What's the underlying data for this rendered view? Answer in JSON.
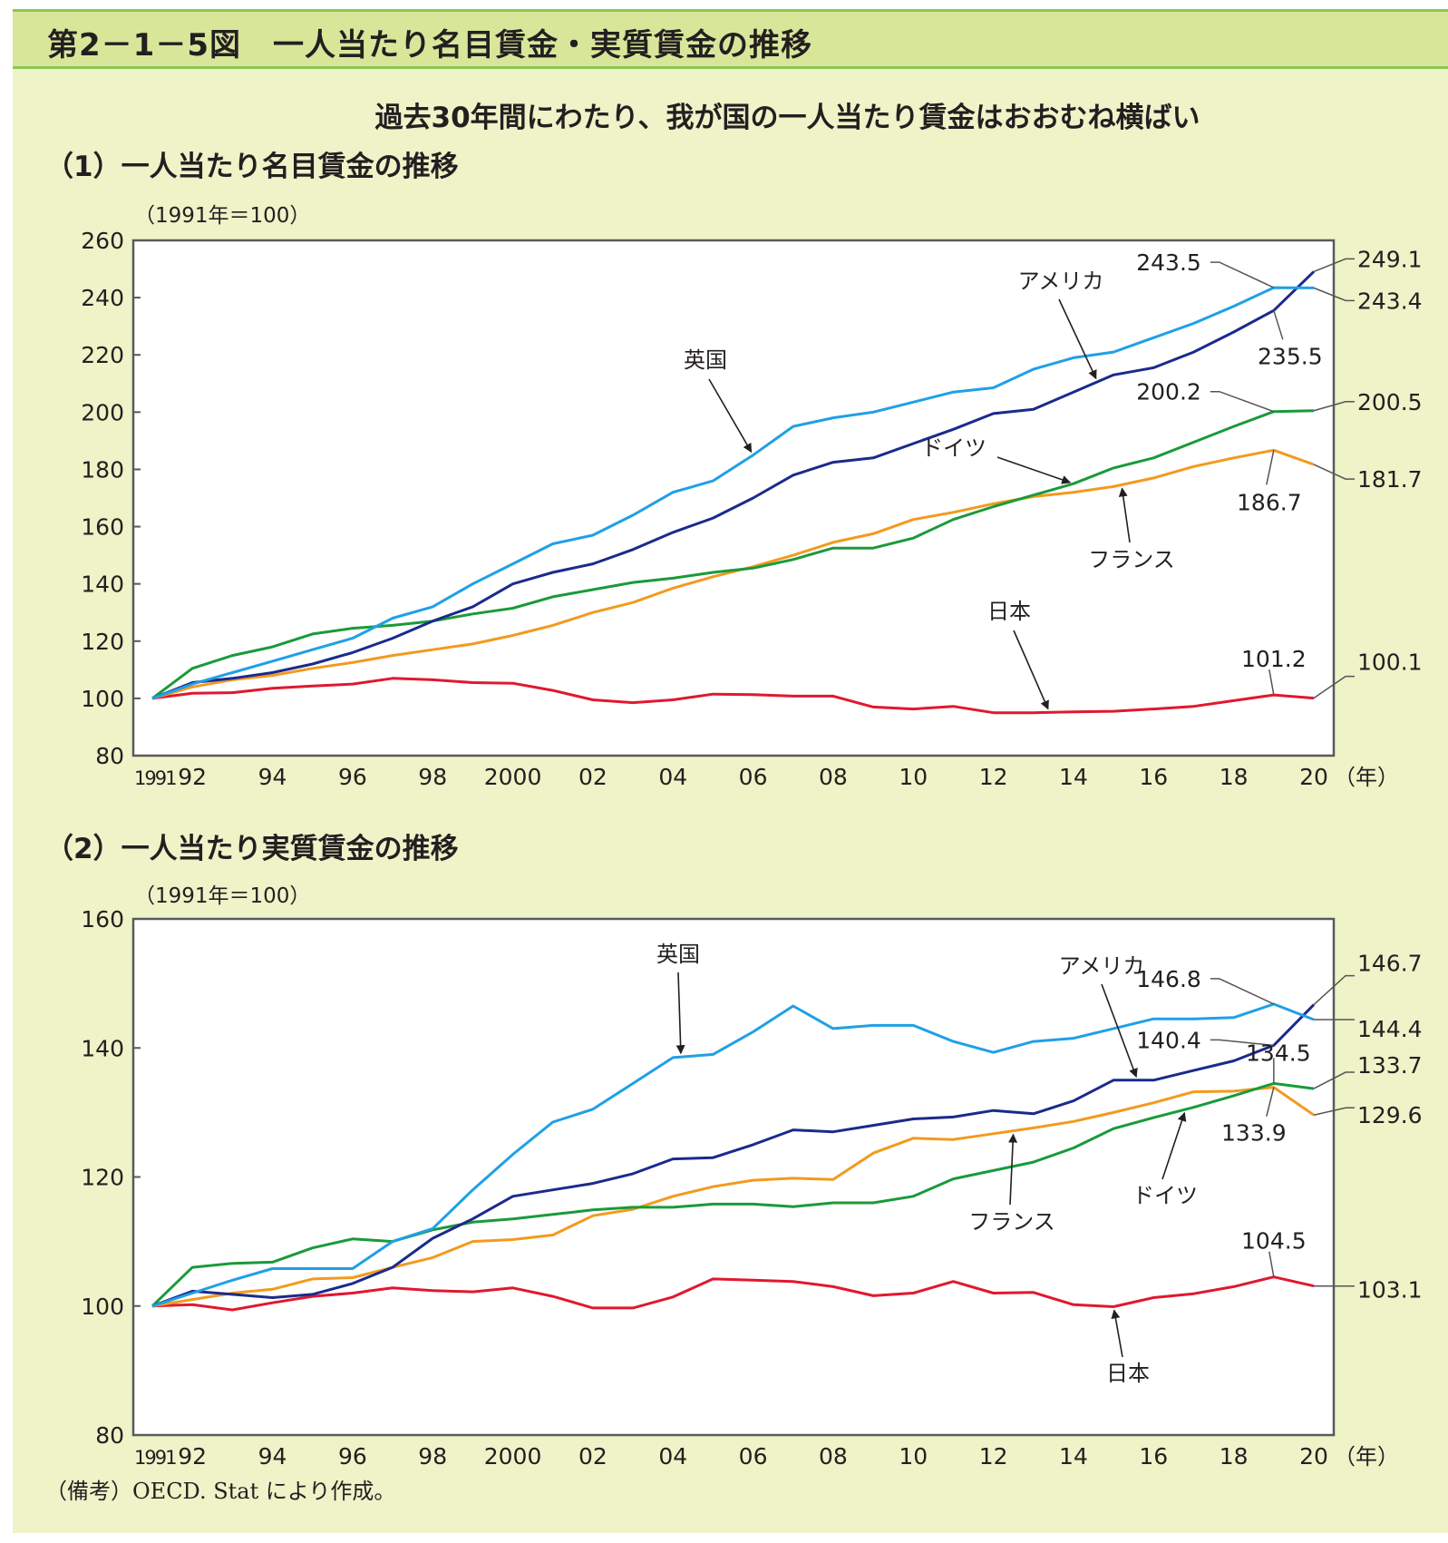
{
  "header": {
    "title": "第2－1－5図　一人当たり名目賃金・実質賃金の推移"
  },
  "subtitle": "過去30年間にわたり、我が国の一人当たり賃金はおおむね横ばい",
  "source_note": "（備考）OECD. Stat により作成。",
  "colors": {
    "header_bg": "#d8e69a",
    "header_border": "#8cc653",
    "panel_bg": "#eef3c8",
    "uk": "#1fa0e6",
    "us": "#1b2a8c",
    "germany": "#1a9a3a",
    "france": "#f39a1e",
    "japan": "#e0182f"
  },
  "chart_data": [
    {
      "type": "line",
      "title": "（1）一人当たり名目賃金の推移",
      "ylabel": "（1991年＝100）",
      "xlabel": "",
      "x_unit_label": "（年）",
      "x": [
        1991,
        1992,
        1993,
        1994,
        1995,
        1996,
        1997,
        1998,
        1999,
        2000,
        2001,
        2002,
        2003,
        2004,
        2005,
        2006,
        2007,
        2008,
        2009,
        2010,
        2011,
        2012,
        2013,
        2014,
        2015,
        2016,
        2017,
        2018,
        2019,
        2020
      ],
      "x_tick_labels": [
        {
          "x": 1991,
          "label": "1991"
        },
        {
          "x": 1992,
          "label": "92"
        },
        {
          "x": 1994,
          "label": "94"
        },
        {
          "x": 1996,
          "label": "96"
        },
        {
          "x": 1998,
          "label": "98"
        },
        {
          "x": 2000,
          "label": "2000"
        },
        {
          "x": 2002,
          "label": "02"
        },
        {
          "x": 2004,
          "label": "04"
        },
        {
          "x": 2006,
          "label": "06"
        },
        {
          "x": 2008,
          "label": "08"
        },
        {
          "x": 2010,
          "label": "10"
        },
        {
          "x": 2012,
          "label": "12"
        },
        {
          "x": 2014,
          "label": "14"
        },
        {
          "x": 2016,
          "label": "16"
        },
        {
          "x": 2018,
          "label": "18"
        },
        {
          "x": 2020,
          "label": "20"
        }
      ],
      "ylim": [
        80,
        260
      ],
      "y_ticks": [
        80,
        100,
        120,
        140,
        160,
        180,
        200,
        220,
        240,
        260
      ],
      "grid": false,
      "legend": "none (inline labels with arrows)",
      "series": [
        {
          "key": "uk",
          "name": "英国",
          "values": [
            100,
            105,
            109,
            113,
            117,
            121,
            128,
            132,
            140,
            147,
            154,
            157,
            164,
            172,
            176,
            185,
            195,
            198,
            200,
            203.5,
            207,
            208.5,
            215,
            219,
            221,
            226,
            231,
            237,
            243.5,
            243.4
          ]
        },
        {
          "key": "us",
          "name": "アメリカ",
          "values": [
            100,
            105.5,
            107,
            109,
            112,
            116,
            121,
            127,
            132,
            140,
            144,
            147,
            152,
            158,
            163,
            170,
            178,
            182.5,
            184,
            189,
            194,
            199.5,
            201,
            207,
            213,
            215.5,
            221,
            228,
            235.5,
            249.1
          ]
        },
        {
          "key": "germany",
          "name": "ドイツ",
          "values": [
            100,
            110.5,
            115,
            118,
            122.5,
            124.5,
            125.5,
            127,
            129.5,
            131.5,
            135.5,
            138,
            140.5,
            142,
            144,
            145.5,
            148.5,
            152.5,
            152.5,
            156,
            162.5,
            167,
            171,
            175,
            180.5,
            184,
            189.5,
            195,
            200.2,
            200.5
          ]
        },
        {
          "key": "france",
          "name": "フランス",
          "values": [
            100,
            104,
            106.5,
            108,
            110.5,
            112.5,
            115,
            117,
            119,
            122,
            125.5,
            130,
            133.5,
            138.5,
            142.5,
            146,
            150,
            154.5,
            157.5,
            162.5,
            165,
            168,
            170.5,
            172,
            174,
            177,
            181,
            184,
            186.7,
            181.7
          ]
        },
        {
          "key": "japan",
          "name": "日本",
          "values": [
            100,
            101.8,
            102,
            103.5,
            104.3,
            105,
            107,
            106.5,
            105.5,
            105.3,
            102.8,
            99.5,
            98.5,
            99.5,
            101.5,
            101.3,
            100.8,
            100.8,
            97,
            96.3,
            97.2,
            95,
            95,
            95.3,
            95.5,
            96.3,
            97.2,
            99.2,
            101.2,
            100.1
          ]
        }
      ],
      "series_labels": [
        {
          "series": "uk",
          "text": "英国",
          "arrow_to_x": 2006
        },
        {
          "series": "us",
          "text": "アメリカ",
          "arrow_to_x": 2014.6
        },
        {
          "series": "germany",
          "text": "ドイツ",
          "arrow_to_x": 2014
        },
        {
          "series": "france",
          "text": "フランス",
          "arrow_to_x": 2015.2
        },
        {
          "series": "japan",
          "text": "日本",
          "arrow_to_x": 2013.4
        }
      ],
      "annotations": [
        {
          "series": "uk",
          "x": 2019,
          "text": "243.5",
          "side": "left-above"
        },
        {
          "series": "uk",
          "x": 2020,
          "text": "243.4",
          "side": "right"
        },
        {
          "series": "us",
          "x": 2019,
          "text": "235.5",
          "side": "below"
        },
        {
          "series": "us",
          "x": 2020,
          "text": "249.1",
          "side": "right"
        },
        {
          "series": "germany",
          "x": 2019,
          "text": "200.2",
          "side": "left-above"
        },
        {
          "series": "germany",
          "x": 2020,
          "text": "200.5",
          "side": "right"
        },
        {
          "series": "france",
          "x": 2019,
          "text": "186.7",
          "side": "below"
        },
        {
          "series": "france",
          "x": 2020,
          "text": "181.7",
          "side": "right"
        },
        {
          "series": "japan",
          "x": 2019,
          "text": "101.2",
          "side": "above"
        },
        {
          "series": "japan",
          "x": 2020,
          "text": "100.1",
          "side": "right"
        }
      ]
    },
    {
      "type": "line",
      "title": "（2）一人当たり実質賃金の推移",
      "ylabel": "（1991年＝100）",
      "xlabel": "",
      "x_unit_label": "（年）",
      "x": [
        1991,
        1992,
        1993,
        1994,
        1995,
        1996,
        1997,
        1998,
        1999,
        2000,
        2001,
        2002,
        2003,
        2004,
        2005,
        2006,
        2007,
        2008,
        2009,
        2010,
        2011,
        2012,
        2013,
        2014,
        2015,
        2016,
        2017,
        2018,
        2019,
        2020
      ],
      "x_tick_labels": [
        {
          "x": 1991,
          "label": "1991"
        },
        {
          "x": 1992,
          "label": "92"
        },
        {
          "x": 1994,
          "label": "94"
        },
        {
          "x": 1996,
          "label": "96"
        },
        {
          "x": 1998,
          "label": "98"
        },
        {
          "x": 2000,
          "label": "2000"
        },
        {
          "x": 2002,
          "label": "02"
        },
        {
          "x": 2004,
          "label": "04"
        },
        {
          "x": 2006,
          "label": "06"
        },
        {
          "x": 2008,
          "label": "08"
        },
        {
          "x": 2010,
          "label": "10"
        },
        {
          "x": 2012,
          "label": "12"
        },
        {
          "x": 2014,
          "label": "14"
        },
        {
          "x": 2016,
          "label": "16"
        },
        {
          "x": 2018,
          "label": "18"
        },
        {
          "x": 2020,
          "label": "20"
        }
      ],
      "ylim": [
        80,
        160
      ],
      "y_ticks": [
        80,
        100,
        120,
        140,
        160
      ],
      "grid": false,
      "legend": "none (inline labels with arrows)",
      "series": [
        {
          "key": "uk",
          "name": "英国",
          "values": [
            100,
            102,
            104,
            105.8,
            105.8,
            105.8,
            110,
            112,
            118,
            123.5,
            128.5,
            130.5,
            134.5,
            138.5,
            139,
            142.5,
            146.5,
            143,
            143.5,
            143.5,
            141,
            139.3,
            141,
            141.5,
            143,
            144.5,
            144.5,
            144.7,
            146.8,
            144.4
          ]
        },
        {
          "key": "us",
          "name": "アメリカ",
          "values": [
            100,
            102.3,
            101.8,
            101.3,
            101.8,
            103.5,
            106,
            110.5,
            113.5,
            117,
            118,
            119,
            120.5,
            122.8,
            123,
            125,
            127.3,
            127,
            128,
            129,
            129.3,
            130.3,
            129.8,
            131.8,
            135,
            135,
            136.5,
            138,
            140.4,
            146.7
          ]
        },
        {
          "key": "germany",
          "name": "ドイツ",
          "values": [
            100,
            106,
            106.6,
            106.8,
            109,
            110.4,
            110,
            111.8,
            113,
            113.5,
            114.2,
            114.9,
            115.3,
            115.3,
            115.8,
            115.8,
            115.4,
            116,
            116,
            117,
            119.7,
            121,
            122.3,
            124.5,
            127.5,
            129.2,
            130.8,
            132.6,
            134.5,
            133.7
          ]
        },
        {
          "key": "france",
          "name": "フランス",
          "values": [
            100,
            101,
            102,
            102.6,
            104.2,
            104.4,
            106,
            107.5,
            110,
            110.3,
            111,
            114,
            115,
            117,
            118.5,
            119.5,
            119.8,
            119.6,
            123.7,
            126,
            125.8,
            126.7,
            127.6,
            128.6,
            130,
            131.5,
            133.2,
            133.3,
            133.9,
            129.6
          ]
        },
        {
          "key": "japan",
          "name": "日本",
          "values": [
            100,
            100.2,
            99.4,
            100.5,
            101.5,
            102,
            102.8,
            102.4,
            102.2,
            102.8,
            101.5,
            99.7,
            99.7,
            101.4,
            104.2,
            104,
            103.8,
            103,
            101.6,
            102,
            103.8,
            102,
            102.1,
            100.2,
            99.9,
            101.3,
            101.9,
            103,
            104.5,
            103.1
          ]
        }
      ],
      "series_labels": [
        {
          "series": "uk",
          "text": "英国",
          "arrow_to_x": 2004.2
        },
        {
          "series": "us",
          "text": "アメリカ",
          "arrow_to_x": 2015.6
        },
        {
          "series": "germany",
          "text": "ドイツ",
          "arrow_to_x": 2016.8
        },
        {
          "series": "france",
          "text": "フランス",
          "arrow_to_x": 2012.5
        },
        {
          "series": "japan",
          "text": "日本",
          "arrow_to_x": 2015
        }
      ],
      "annotations": [
        {
          "series": "uk",
          "x": 2019,
          "text": "146.8",
          "side": "left-above"
        },
        {
          "series": "uk",
          "x": 2020,
          "text": "144.4",
          "side": "right"
        },
        {
          "series": "us",
          "x": 2019,
          "text": "140.4",
          "side": "left"
        },
        {
          "series": "us",
          "x": 2020,
          "text": "146.7",
          "side": "right"
        },
        {
          "series": "germany",
          "x": 2019,
          "text": "134.5",
          "side": "above"
        },
        {
          "series": "germany",
          "x": 2020,
          "text": "133.7",
          "side": "right"
        },
        {
          "series": "france",
          "x": 2019,
          "text": "133.9",
          "side": "below"
        },
        {
          "series": "france",
          "x": 2020,
          "text": "129.6",
          "side": "right"
        },
        {
          "series": "japan",
          "x": 2019,
          "text": "104.5",
          "side": "above"
        },
        {
          "series": "japan",
          "x": 2020,
          "text": "103.1",
          "side": "right"
        }
      ]
    }
  ]
}
